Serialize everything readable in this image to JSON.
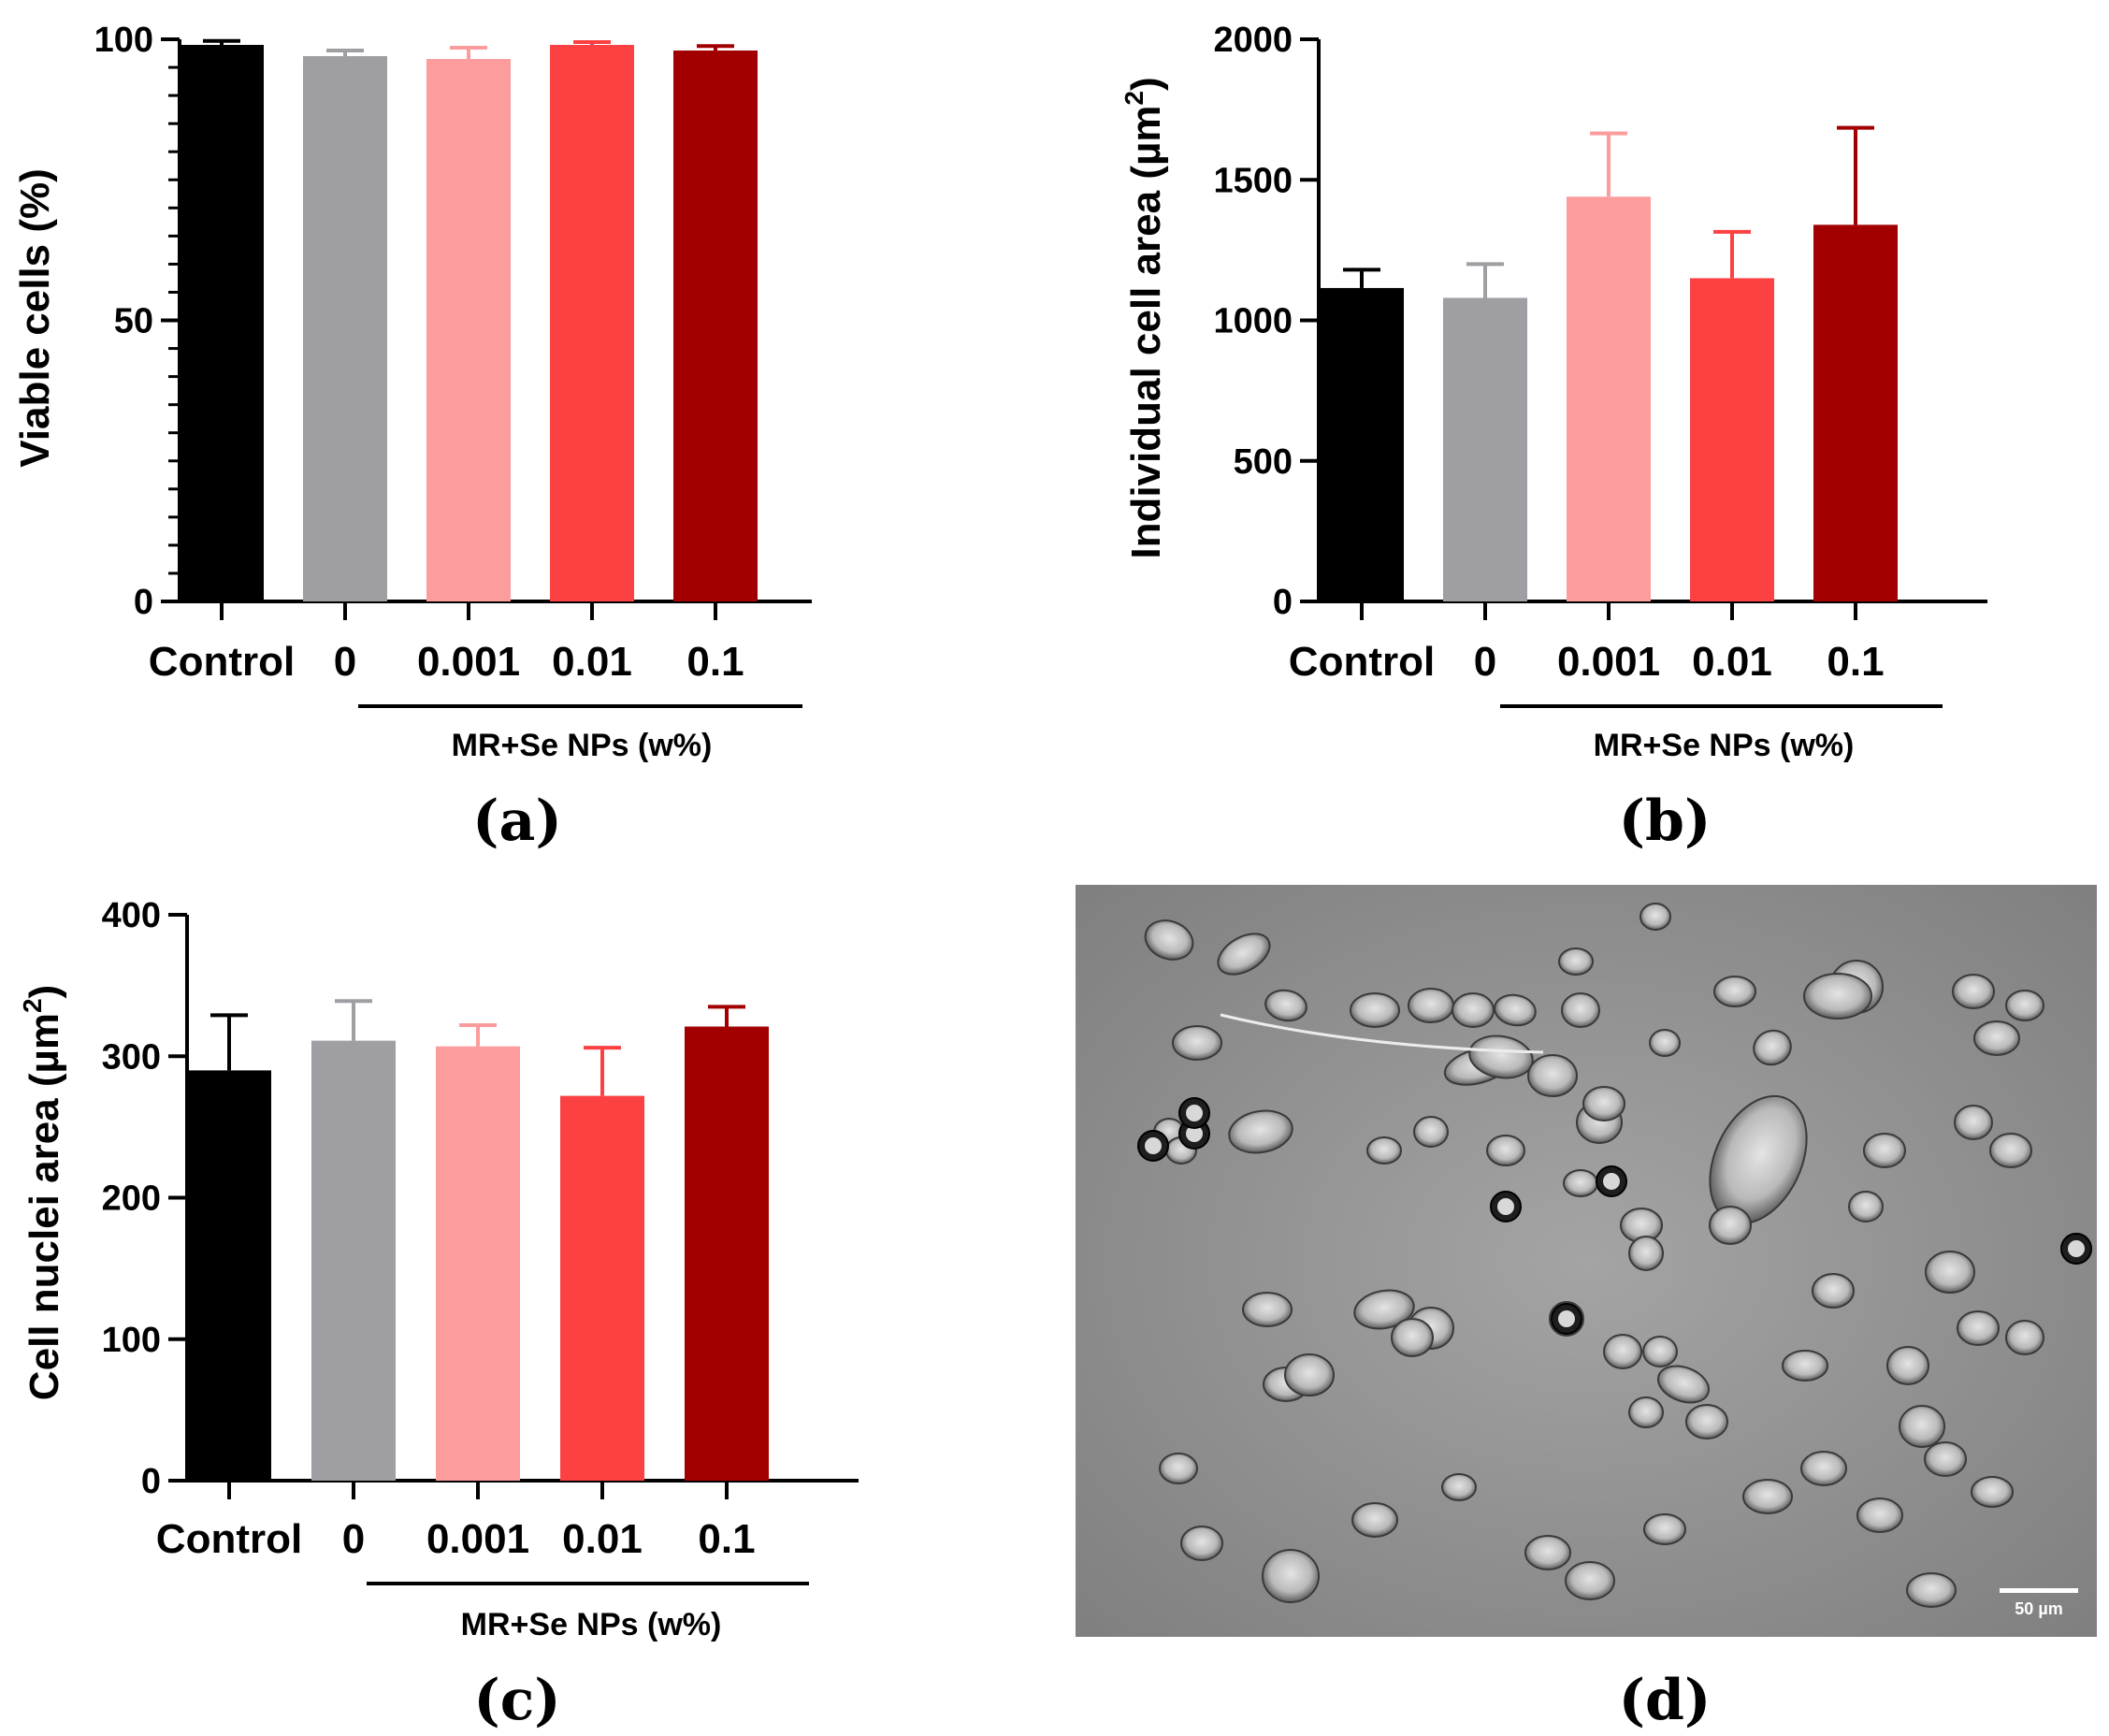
{
  "chart_data": [
    {
      "id": "a",
      "type": "bar",
      "panel_label": "(a)",
      "ylabel": "Viable cells (%)",
      "ylim": [
        0,
        100
      ],
      "major_ticks": [
        0,
        50,
        100
      ],
      "tick_labels": [
        "0",
        "50",
        "100"
      ],
      "minor_step": 5,
      "categories": [
        "Control",
        "0",
        "0.001",
        "0.01",
        "0.1"
      ],
      "values": [
        99,
        97,
        96.5,
        99,
        98
      ],
      "errors": [
        0.7,
        1.0,
        2.0,
        0.5,
        0.8
      ],
      "colors": [
        "#000000",
        "#9e9ea3",
        "#fd9c9c",
        "#fc4143",
        "#a20000"
      ],
      "group_label": "MR+Se NPs (w%)",
      "group_start_index": 1
    },
    {
      "id": "b",
      "type": "bar",
      "panel_label": "(b)",
      "ylabel": "Individual cell area (µm²)",
      "ylabel_main": "Individual cell area (µm",
      "ylabel_sup": "2",
      "ylabel_tail": ")",
      "ylim": [
        0,
        2000
      ],
      "major_ticks": [
        0,
        500,
        1000,
        1500,
        2000
      ],
      "tick_labels": [
        "0",
        "500",
        "1000",
        "1500",
        "2000"
      ],
      "minor_step": 0,
      "categories": [
        "Control",
        "0",
        "0.001",
        "0.01",
        "0.1"
      ],
      "values": [
        1115,
        1080,
        1440,
        1150,
        1340
      ],
      "errors": [
        65,
        120,
        225,
        165,
        345
      ],
      "colors": [
        "#000000",
        "#9e9ea3",
        "#fd9c9c",
        "#fc4143",
        "#a20000"
      ],
      "group_label": "MR+Se NPs (w%)",
      "group_start_index": 1
    },
    {
      "id": "c",
      "type": "bar",
      "panel_label": "(c)",
      "ylabel": "Cell nuclei area (µm²)",
      "ylabel_main": "Cell nuclei area (µm",
      "ylabel_sup": "2",
      "ylabel_tail": ")",
      "ylim": [
        0,
        400
      ],
      "major_ticks": [
        0,
        100,
        200,
        300,
        400
      ],
      "tick_labels": [
        "0",
        "100",
        "200",
        "300",
        "400"
      ],
      "minor_step": 0,
      "categories": [
        "Control",
        "0",
        "0.001",
        "0.01",
        "0.1"
      ],
      "values": [
        290,
        311,
        307,
        272,
        321
      ],
      "errors": [
        39,
        28,
        15,
        34,
        14
      ],
      "colors": [
        "#000000",
        "#9e9ea3",
        "#fd9c9c",
        "#fc4143",
        "#a20000"
      ],
      "group_label": "MR+Se NPs (w%)",
      "group_start_index": 1
    }
  ],
  "micrograph": {
    "panel_label": "(d)",
    "scale_bar_label": "50 µm"
  }
}
